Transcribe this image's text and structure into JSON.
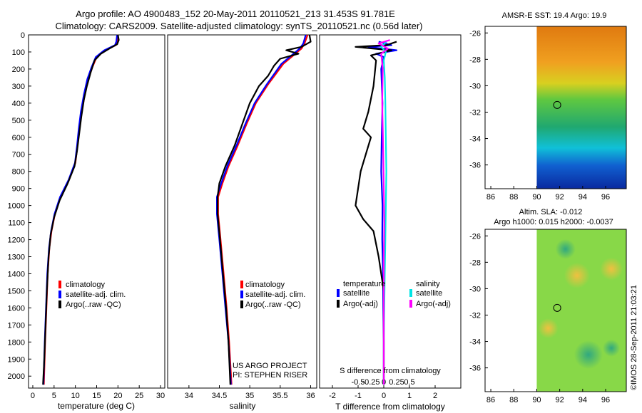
{
  "header": {
    "line1": "Argo profile: AO 4900483_152 20-May-2011 20110521_213 31.453S 91.781E",
    "line2": "Climatology: CARS2009. Satellite-adjusted climatology: synTS_20110521.nc (0.56d later)"
  },
  "credit": {
    "line1": "US ARGO PROJECT",
    "line2": "PI: STEPHEN RISER"
  },
  "watermark": "©IMOS 28-Sep-2011 21:03:21",
  "colors": {
    "climatology": "#ff0000",
    "satellite": "#0000ff",
    "argo": "#000000",
    "sal_satellite": "#00e5e5",
    "sal_argo": "#ff00ff"
  },
  "chart_data": [
    {
      "type": "line",
      "xlabel": "temperature (deg C)",
      "xlim": [
        -1,
        31
      ],
      "xticks": [
        0,
        5,
        10,
        15,
        20,
        25,
        30
      ],
      "ylim": [
        0,
        2070
      ],
      "yticks": [
        0,
        100,
        200,
        300,
        400,
        500,
        600,
        700,
        800,
        900,
        1000,
        1100,
        1200,
        1300,
        1400,
        1500,
        1600,
        1700,
        1800,
        1900,
        2000
      ],
      "legend": [
        "climatology",
        "satellite-adj. clim.",
        "Argo(..raw -QC)"
      ],
      "series": [
        {
          "name": "climatology",
          "points": [
            [
              20,
              0
            ],
            [
              19.8,
              40
            ],
            [
              19.5,
              60
            ],
            [
              17,
              90
            ],
            [
              15,
              130
            ],
            [
              14,
              190
            ],
            [
              13,
              260
            ],
            [
              12.2,
              350
            ],
            [
              11.5,
              450
            ],
            [
              11,
              550
            ],
            [
              10.5,
              650
            ],
            [
              10,
              750
            ],
            [
              8.5,
              850
            ],
            [
              6.5,
              950
            ],
            [
              5.2,
              1050
            ],
            [
              4.4,
              1150
            ],
            [
              3.9,
              1250
            ],
            [
              3.5,
              1400
            ],
            [
              3.2,
              1600
            ],
            [
              2.9,
              1800
            ],
            [
              2.6,
              2050
            ]
          ]
        },
        {
          "name": "satellite-adj. clim.",
          "points": [
            [
              19.8,
              0
            ],
            [
              19.6,
              40
            ],
            [
              19.3,
              60
            ],
            [
              16.8,
              90
            ],
            [
              14.8,
              130
            ],
            [
              13.8,
              190
            ],
            [
              12.8,
              260
            ],
            [
              12,
              350
            ],
            [
              11.3,
              450
            ],
            [
              10.8,
              550
            ],
            [
              10.4,
              650
            ],
            [
              9.9,
              750
            ],
            [
              8.4,
              850
            ],
            [
              6.4,
              950
            ],
            [
              5.1,
              1050
            ],
            [
              4.3,
              1150
            ],
            [
              3.8,
              1250
            ],
            [
              3.4,
              1400
            ],
            [
              3.1,
              1600
            ],
            [
              2.8,
              1800
            ],
            [
              2.5,
              2050
            ]
          ]
        },
        {
          "name": "Argo(..raw -QC)",
          "points": [
            [
              20,
              0
            ],
            [
              20.2,
              30
            ],
            [
              19.8,
              55
            ],
            [
              18,
              80
            ],
            [
              16,
              110
            ],
            [
              14.5,
              150
            ],
            [
              13.6,
              220
            ],
            [
              12.7,
              300
            ],
            [
              12,
              380
            ],
            [
              11.4,
              480
            ],
            [
              10.9,
              580
            ],
            [
              10.4,
              680
            ],
            [
              9.8,
              770
            ],
            [
              8.2,
              870
            ],
            [
              6.3,
              970
            ],
            [
              5,
              1070
            ],
            [
              4.2,
              1170
            ],
            [
              3.7,
              1300
            ],
            [
              3.3,
              1500
            ],
            [
              3,
              1700
            ],
            [
              2.7,
              1900
            ],
            [
              2.4,
              2050
            ]
          ]
        }
      ]
    },
    {
      "type": "line",
      "xlabel": "salinity",
      "xlim": [
        33.65,
        36.1
      ],
      "xticks": [
        34,
        34.5,
        35,
        35.5,
        36
      ],
      "ylim": [
        0,
        2070
      ],
      "legend": [
        "climatology",
        "satellite-adj. clim.",
        "Argo(..raw -QC)"
      ],
      "series": [
        {
          "name": "climatology",
          "points": [
            [
              35.95,
              0
            ],
            [
              35.9,
              50
            ],
            [
              35.85,
              80
            ],
            [
              35.75,
              110
            ],
            [
              35.55,
              170
            ],
            [
              35.3,
              290
            ],
            [
              35.1,
              400
            ],
            [
              34.95,
              520
            ],
            [
              34.8,
              650
            ],
            [
              34.65,
              770
            ],
            [
              34.55,
              870
            ],
            [
              34.48,
              950
            ],
            [
              34.48,
              1050
            ],
            [
              34.52,
              1200
            ],
            [
              34.57,
              1400
            ],
            [
              34.62,
              1600
            ],
            [
              34.66,
              1800
            ],
            [
              34.7,
              2050
            ]
          ]
        },
        {
          "name": "satellite-adj. clim.",
          "points": [
            [
              35.92,
              0
            ],
            [
              35.88,
              50
            ],
            [
              35.82,
              80
            ],
            [
              35.72,
              110
            ],
            [
              35.52,
              170
            ],
            [
              35.28,
              290
            ],
            [
              35.08,
              400
            ],
            [
              34.93,
              520
            ],
            [
              34.78,
              650
            ],
            [
              34.63,
              770
            ],
            [
              34.53,
              870
            ],
            [
              34.46,
              950
            ],
            [
              34.46,
              1050
            ],
            [
              34.5,
              1200
            ],
            [
              34.55,
              1400
            ],
            [
              34.6,
              1600
            ],
            [
              34.65,
              1800
            ],
            [
              34.69,
              2050
            ]
          ]
        },
        {
          "name": "Argo(..raw -QC)",
          "points": [
            [
              35.98,
              0
            ],
            [
              36,
              40
            ],
            [
              35.85,
              70
            ],
            [
              35.6,
              90
            ],
            [
              35.8,
              110
            ],
            [
              35.5,
              140
            ],
            [
              35.4,
              180
            ],
            [
              35.3,
              240
            ],
            [
              35.15,
              300
            ],
            [
              35,
              400
            ],
            [
              34.88,
              520
            ],
            [
              34.75,
              650
            ],
            [
              34.6,
              770
            ],
            [
              34.5,
              870
            ],
            [
              34.47,
              950
            ],
            [
              34.47,
              1050
            ],
            [
              34.51,
              1200
            ],
            [
              34.56,
              1400
            ],
            [
              34.61,
              1600
            ],
            [
              34.65,
              1800
            ],
            [
              34.68,
              2050
            ]
          ]
        }
      ]
    },
    {
      "type": "line",
      "xlabel": "T difference from climatology",
      "xlabel2": "S difference from climatology",
      "xlim": [
        -2.5,
        3
      ],
      "xticks": [
        -2,
        -1,
        0,
        1,
        2
      ],
      "sticks": [
        -0.5,
        -0.25,
        0,
        0.25,
        0.5
      ],
      "ylim": [
        0,
        2070
      ],
      "legend_titles": [
        "temperature",
        "salinity"
      ],
      "legend": [
        "satellite",
        "Argo(-adj)",
        "satellite",
        "Argo(-adj)"
      ],
      "series": [
        {
          "name": "satellite",
          "group": "temperature",
          "points": [
            [
              -0.2,
              40
            ],
            [
              0.3,
              60
            ],
            [
              -0.6,
              70
            ],
            [
              0.5,
              90
            ],
            [
              -0.3,
              110
            ],
            [
              0,
              130
            ],
            [
              -0.1,
              200
            ],
            [
              -0.05,
              400
            ],
            [
              -0.08,
              600
            ],
            [
              -0.1,
              800
            ],
            [
              -0.05,
              1000
            ],
            [
              -0.06,
              1200
            ],
            [
              -0.03,
              1400
            ],
            [
              -0.02,
              1600
            ],
            [
              0,
              1800
            ],
            [
              0,
              2050
            ]
          ]
        },
        {
          "name": "Argo(-adj)",
          "group": "temperature",
          "points": [
            [
              0.5,
              40
            ],
            [
              0.1,
              60
            ],
            [
              -1.1,
              70
            ],
            [
              0.3,
              90
            ],
            [
              -0.5,
              120
            ],
            [
              -0.3,
              150
            ],
            [
              -0.4,
              300
            ],
            [
              -0.6,
              450
            ],
            [
              -0.8,
              550
            ],
            [
              -0.5,
              600
            ],
            [
              -0.7,
              700
            ],
            [
              -0.9,
              800
            ],
            [
              -1,
              900
            ],
            [
              -1.1,
              1000
            ],
            [
              -0.8,
              1080
            ],
            [
              -0.4,
              1150
            ],
            [
              -0.2,
              1300
            ],
            [
              0,
              1500
            ],
            [
              0,
              2050
            ]
          ]
        },
        {
          "name": "satellite",
          "group": "salinity",
          "points": [
            [
              0.05,
              40
            ],
            [
              -0.05,
              70
            ],
            [
              0.04,
              100
            ],
            [
              0,
              150
            ],
            [
              0.02,
              250
            ],
            [
              0.03,
              400
            ],
            [
              0.04,
              600
            ],
            [
              0.05,
              800
            ],
            [
              0.04,
              1000
            ],
            [
              0.03,
              1200
            ],
            [
              0.02,
              1400
            ],
            [
              0.01,
              1600
            ],
            [
              0,
              1800
            ],
            [
              0,
              2050
            ]
          ]
        },
        {
          "name": "Argo(-adj)",
          "group": "salinity",
          "points": [
            [
              0.12,
              30
            ],
            [
              -0.1,
              50
            ],
            [
              0.08,
              80
            ],
            [
              -0.05,
              110
            ],
            [
              -0.02,
              200
            ],
            [
              -0.03,
              400
            ],
            [
              -0.02,
              550
            ],
            [
              -0.01,
              700
            ],
            [
              0,
              900
            ],
            [
              0.01,
              1100
            ],
            [
              0,
              1300
            ],
            [
              0,
              1600
            ],
            [
              0,
              2050
            ]
          ]
        }
      ]
    },
    {
      "type": "heatmap",
      "title": "AMSR-E SST: 19.4  Argo: 19.9",
      "xlim": [
        85.5,
        97.8
      ],
      "xticks": [
        86,
        88,
        90,
        92,
        94,
        96
      ],
      "ylim": [
        -37.8,
        -25.5
      ],
      "yticks": [
        -26,
        -28,
        -30,
        -32,
        -34,
        -36
      ],
      "data_lon_range": [
        90,
        97.8
      ],
      "marker": {
        "lon": 91.781,
        "lat": -31.453
      }
    },
    {
      "type": "heatmap",
      "title": "Altim. SLA: -0.012",
      "subtitle": "Argo h1000: 0.015 h2000: -0.0037",
      "xlim": [
        85.5,
        97.8
      ],
      "xticks": [
        86,
        88,
        90,
        92,
        94,
        96
      ],
      "ylim": [
        -37.8,
        -25.5
      ],
      "yticks": [
        -26,
        -28,
        -30,
        -32,
        -34,
        -36
      ],
      "data_lon_range": [
        90,
        97.8
      ],
      "marker": {
        "lon": 91.781,
        "lat": -31.453
      }
    }
  ]
}
